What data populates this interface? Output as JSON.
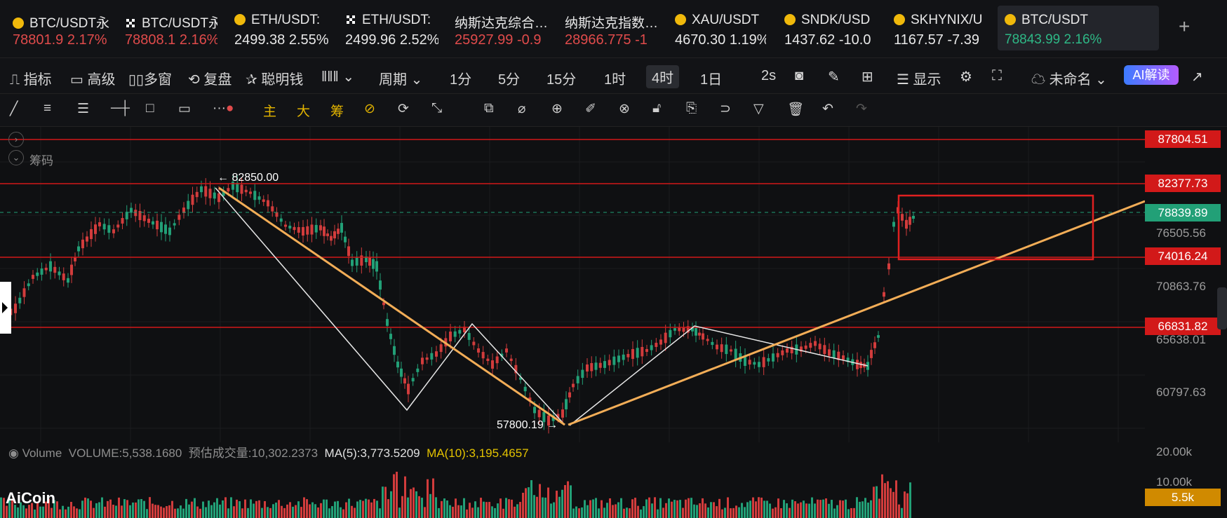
{
  "tickers": [
    {
      "name": "BTC/USDT永",
      "price": "78801.9",
      "change": "2.17%",
      "icon": "binance-icon",
      "dir": "dn"
    },
    {
      "name": "BTC/USDT永",
      "price": "78808.1",
      "change": "2.16%",
      "icon": "okx-icon",
      "dir": "dn"
    },
    {
      "name": "ETH/USDT:",
      "price": "2499.38",
      "change": "2.55%",
      "icon": "binance-icon",
      "dir": "up"
    },
    {
      "name": "ETH/USDT:",
      "price": "2499.96",
      "change": "2.52%",
      "icon": "okx-icon",
      "dir": "up"
    },
    {
      "name": "纳斯达克综合…",
      "price": "25927.99",
      "change": "-0.9",
      "icon": "",
      "dir": "dn"
    },
    {
      "name": "纳斯达克指数…",
      "price": "28966.775",
      "change": "-1",
      "icon": "",
      "dir": "dn"
    },
    {
      "name": "XAU/USDT",
      "price": "4670.30",
      "change": "1.19%",
      "icon": "binance-icon",
      "dir": "up"
    },
    {
      "name": "SNDK/USD",
      "price": "1437.62",
      "change": "-10.0",
      "icon": "binance-icon",
      "dir": "up"
    },
    {
      "name": "SKHYNIX/U",
      "price": "1167.57",
      "change": "-7.39",
      "icon": "binance-icon",
      "dir": "up"
    }
  ],
  "active_ticker": {
    "name": "BTC/USDT",
    "price": "78843.99",
    "change": "2.16%"
  },
  "toolbar1": {
    "indicators": "指标",
    "advanced": "高级",
    "multi_window": "多窗",
    "replay": "复盘",
    "smart_money": "聪明钱",
    "period_label": "周期",
    "periods": [
      "1分",
      "5分",
      "15分",
      "1时",
      "4时",
      "1日"
    ],
    "selected_period": "4时",
    "interval": "2s",
    "display": "显示",
    "layout_name": "未命名",
    "ai_read": "AI解读"
  },
  "toolbar2": {
    "main": "主",
    "big": "大",
    "chips": "筹"
  },
  "chart": {
    "chip_label": "筹码",
    "high_label": "← 82850.00",
    "low_label": "57800.19 →",
    "price_levels": [
      {
        "value": "87804.51",
        "type": "red"
      },
      {
        "value": "82377.73",
        "type": "red"
      },
      {
        "value": "78839.89",
        "type": "green"
      },
      {
        "value": "74016.24",
        "type": "red"
      },
      {
        "value": "66831.82",
        "type": "red"
      }
    ],
    "grid_labels": [
      "76505.56",
      "70863.76",
      "65638.01",
      "60797.63"
    ]
  },
  "volume": {
    "label": "Volume",
    "volume_text": "VOLUME:5,538.1680",
    "estimate_label": "预估成交量:",
    "estimate_value": "10,302.2373",
    "ma5": "MA(5):3,773.5209",
    "ma10": "MA(10):3,195.4657",
    "axis_labels": [
      "20.00k",
      "10.00k"
    ],
    "current_tag": "5.5k"
  },
  "logo": "AiCoin"
}
